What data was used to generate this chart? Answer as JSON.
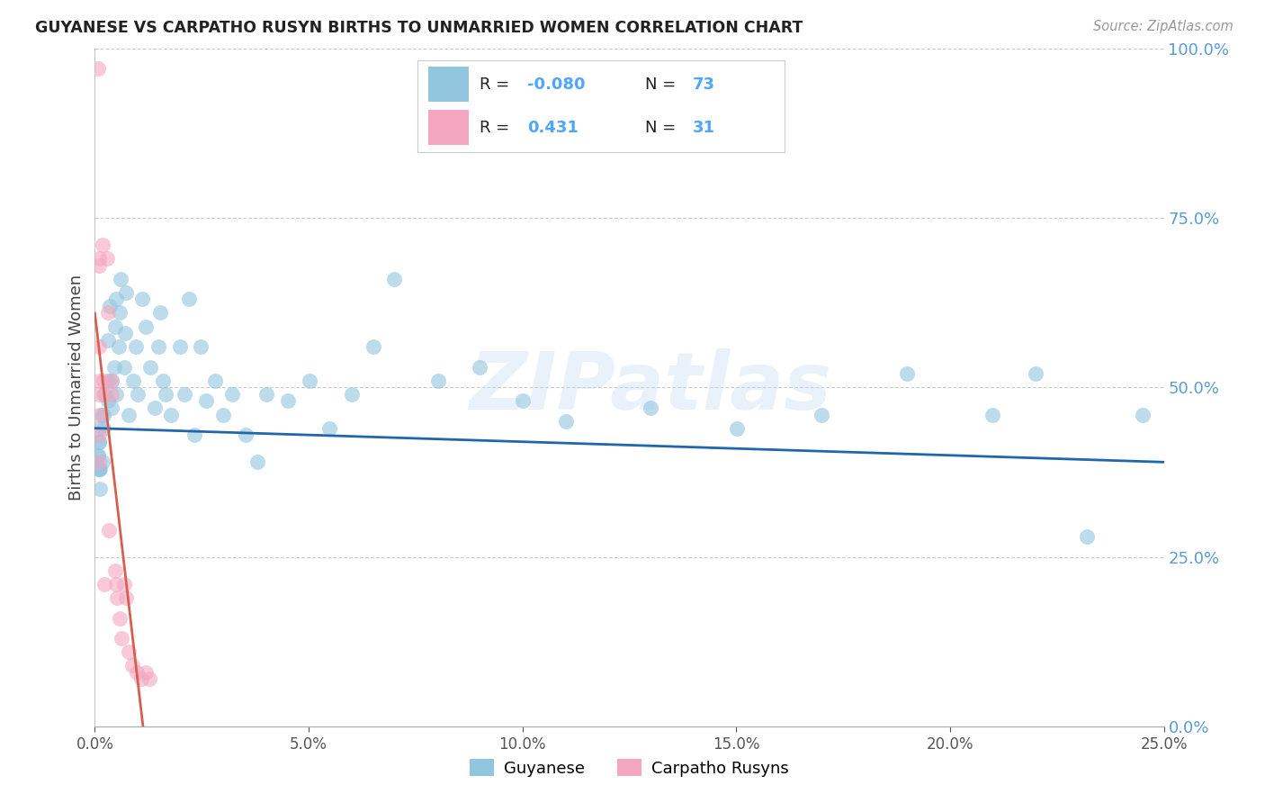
{
  "title": "GUYANESE VS CARPATHO RUSYN BIRTHS TO UNMARRIED WOMEN CORRELATION CHART",
  "source": "Source: ZipAtlas.com",
  "ylabel": "Births to Unmarried Women",
  "R_guyanese": -0.08,
  "N_guyanese": 73,
  "R_carpatho": 0.431,
  "N_carpatho": 31,
  "blue_color": "#92c5de",
  "pink_color": "#f4a6c0",
  "blue_line_color": "#2166ac",
  "pink_line_color": "#d6604d",
  "background_color": "#ffffff",
  "xlim": [
    0.0,
    0.25
  ],
  "ylim": [
    0.0,
    1.0
  ],
  "xticks": [
    0.0,
    0.05,
    0.1,
    0.15,
    0.2,
    0.25
  ],
  "yticks": [
    0.0,
    0.25,
    0.5,
    0.75,
    1.0
  ],
  "legend_labels": [
    "Guyanese",
    "Carpatho Rusyns"
  ],
  "legend_R_colors": [
    "#4da6ff",
    "#4da6ff"
  ],
  "legend_N_colors": [
    "#4da6ff",
    "#4da6ff"
  ],
  "guyanese_x": [
    0.0008,
    0.001,
    0.0012,
    0.001,
    0.0015,
    0.001,
    0.0008,
    0.001,
    0.001,
    0.0012,
    0.002,
    0.0022,
    0.003,
    0.002,
    0.0018,
    0.003,
    0.0035,
    0.003,
    0.0045,
    0.004,
    0.0038,
    0.0048,
    0.005,
    0.0055,
    0.005,
    0.0058,
    0.006,
    0.0068,
    0.007,
    0.0072,
    0.008,
    0.009,
    0.0095,
    0.01,
    0.011,
    0.012,
    0.013,
    0.014,
    0.0148,
    0.0152,
    0.016,
    0.0165,
    0.0178,
    0.02,
    0.021,
    0.022,
    0.0232,
    0.0248,
    0.026,
    0.0282,
    0.03,
    0.032,
    0.0352,
    0.038,
    0.04,
    0.0452,
    0.0502,
    0.0548,
    0.06,
    0.0652,
    0.07,
    0.0802,
    0.09,
    0.1,
    0.1102,
    0.13,
    0.1502,
    0.17,
    0.19,
    0.21,
    0.22,
    0.232,
    0.245
  ],
  "guyanese_y": [
    0.4,
    0.42,
    0.38,
    0.44,
    0.46,
    0.38,
    0.4,
    0.42,
    0.38,
    0.35,
    0.46,
    0.49,
    0.51,
    0.44,
    0.39,
    0.57,
    0.62,
    0.48,
    0.53,
    0.51,
    0.47,
    0.59,
    0.63,
    0.56,
    0.49,
    0.61,
    0.66,
    0.53,
    0.58,
    0.64,
    0.46,
    0.51,
    0.56,
    0.49,
    0.63,
    0.59,
    0.53,
    0.47,
    0.56,
    0.61,
    0.51,
    0.49,
    0.46,
    0.56,
    0.49,
    0.63,
    0.43,
    0.56,
    0.48,
    0.51,
    0.46,
    0.49,
    0.43,
    0.39,
    0.49,
    0.48,
    0.51,
    0.44,
    0.49,
    0.56,
    0.66,
    0.51,
    0.53,
    0.48,
    0.45,
    0.47,
    0.44,
    0.46,
    0.52,
    0.46,
    0.52,
    0.28,
    0.46
  ],
  "carpatho_x": [
    0.0008,
    0.001,
    0.001,
    0.001,
    0.001,
    0.001,
    0.001,
    0.001,
    0.001,
    0.0018,
    0.002,
    0.002,
    0.0022,
    0.0028,
    0.003,
    0.0032,
    0.0038,
    0.004,
    0.0048,
    0.005,
    0.0052,
    0.0058,
    0.0062,
    0.0068,
    0.0072,
    0.0078,
    0.0088,
    0.0098,
    0.0108,
    0.0118,
    0.0128
  ],
  "carpatho_y": [
    0.97,
    0.69,
    0.68,
    0.56,
    0.51,
    0.49,
    0.46,
    0.43,
    0.39,
    0.71,
    0.51,
    0.49,
    0.21,
    0.69,
    0.61,
    0.29,
    0.51,
    0.49,
    0.23,
    0.21,
    0.19,
    0.16,
    0.13,
    0.21,
    0.19,
    0.11,
    0.09,
    0.08,
    0.07,
    0.08,
    0.07
  ]
}
